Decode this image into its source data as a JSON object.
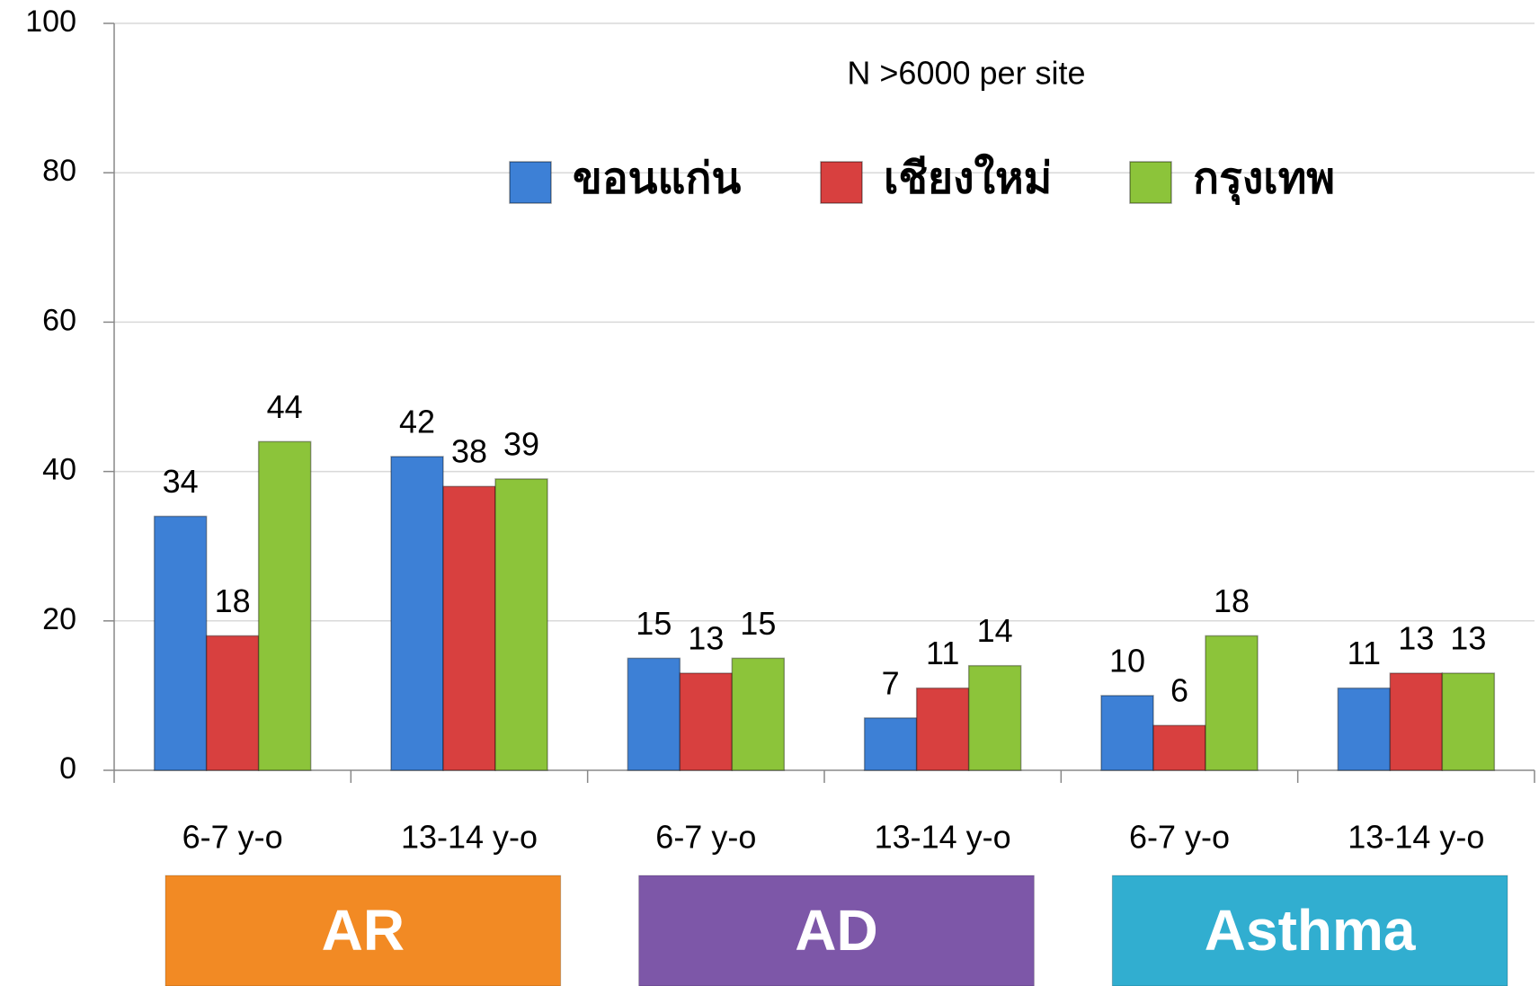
{
  "chart_data": {
    "type": "bar",
    "annotation": "N >6000 per site",
    "categories": [
      "6-7 y-o",
      "13-14 y-o",
      "6-7 y-o",
      "13-14 y-o",
      "6-7 y-o",
      "13-14 y-o"
    ],
    "groups": [
      {
        "label": "AR",
        "color": "#f28a24"
      },
      {
        "label": "AD",
        "color": "#7d57a8"
      },
      {
        "label": "Asthma",
        "color": "#31aed0"
      }
    ],
    "series": [
      {
        "name": "ขอนแก่น",
        "color": "#3d80d6",
        "values": [
          34,
          42,
          15,
          7,
          10,
          11
        ]
      },
      {
        "name": "เชียงใหม่",
        "color": "#d8403f",
        "values": [
          18,
          38,
          13,
          11,
          6,
          13
        ]
      },
      {
        "name": "กรุงเทพ",
        "color": "#8cc43a",
        "values": [
          44,
          39,
          15,
          14,
          18,
          13
        ]
      }
    ],
    "ylim": [
      0,
      100
    ],
    "yticks": [
      0,
      20,
      40,
      60,
      80,
      100
    ],
    "grid": true
  }
}
